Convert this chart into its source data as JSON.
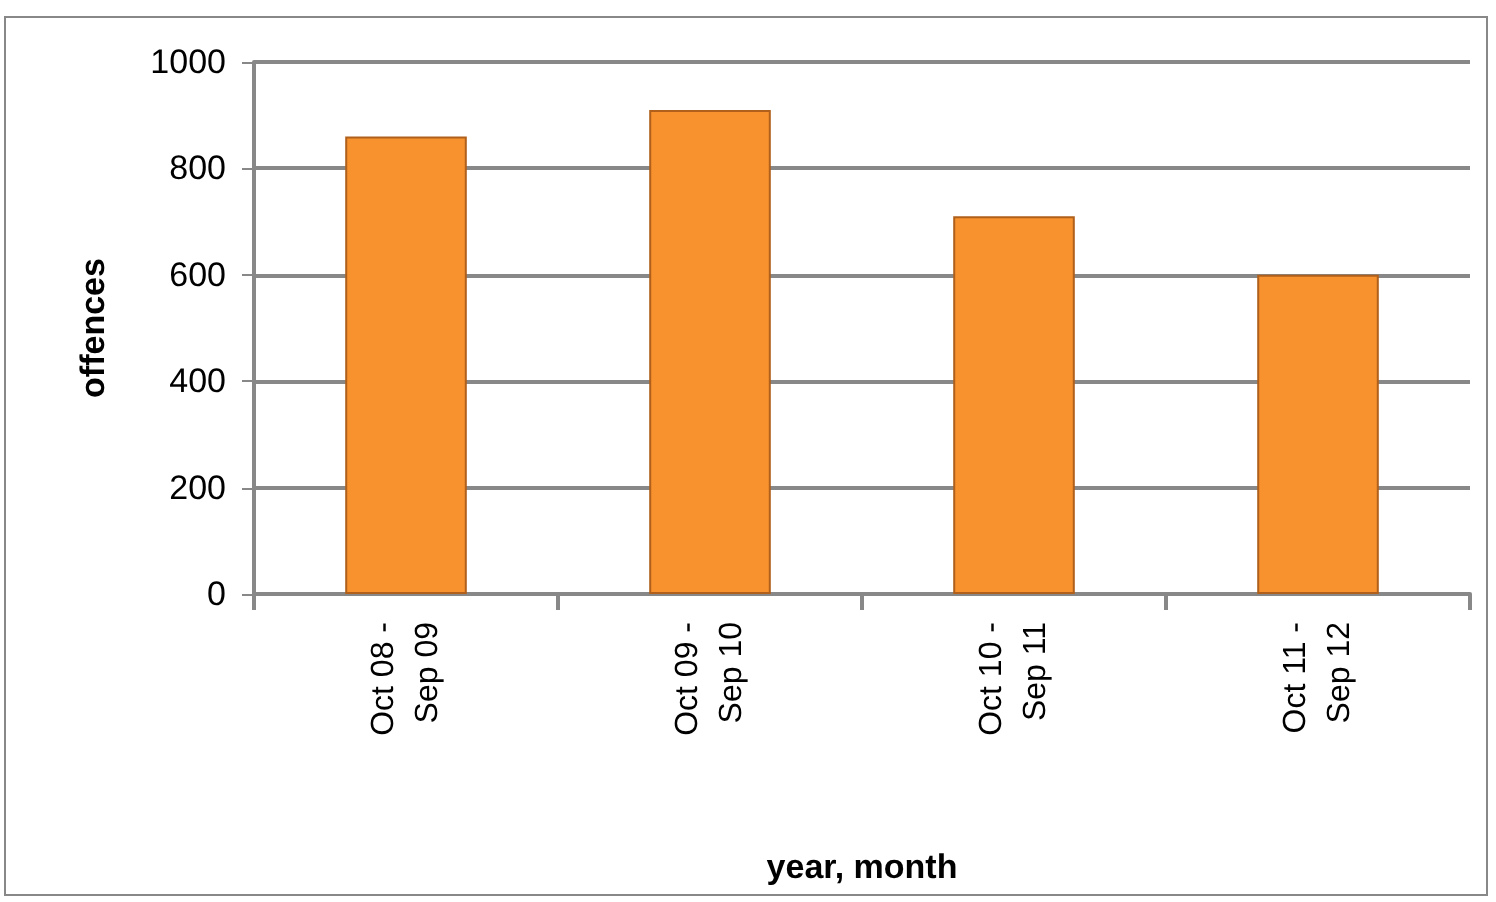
{
  "chart_data": {
    "type": "bar",
    "xlabel": "year, month",
    "ylabel": "offences",
    "categories": [
      "Oct 08 -\nSep 09",
      "Oct 09 -\nSep 10",
      "Oct 10 -\nSep 11",
      "Oct 11 -\nSep 12"
    ],
    "values": [
      860,
      910,
      710,
      600
    ],
    "color": "#f7922e",
    "ylim": [
      0,
      1000
    ],
    "yticks": [
      0,
      200,
      400,
      600,
      800,
      1000
    ],
    "grid": "y"
  }
}
